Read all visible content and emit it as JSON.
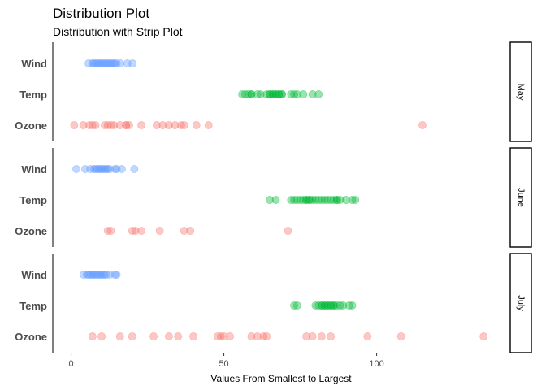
{
  "chart_data": {
    "type": "scatter",
    "title": "Distribution Plot",
    "subtitle": "Distribution with Strip Plot",
    "xlabel": "Values From Smallest to Largest",
    "ylabel": "",
    "xlim": [
      -6,
      140
    ],
    "xticks": [
      0,
      50,
      100
    ],
    "categories": [
      "Wind",
      "Temp",
      "Ozone"
    ],
    "colors": {
      "Wind": "#619cff",
      "Temp": "#00ba38",
      "Ozone": "#f8766d"
    },
    "grid": false,
    "legend": "none",
    "facets": [
      {
        "name": "May",
        "series": [
          {
            "name": "Wind",
            "values": [
              5.7,
              6.9,
              7.4,
              8.0,
              8.6,
              9.2,
              9.7,
              10.3,
              10.9,
              11.5,
              12.0,
              12.6,
              13.2,
              13.8,
              14.3,
              14.9,
              16.1,
              18.4,
              20.1
            ]
          },
          {
            "name": "Temp",
            "values": [
              56,
              57,
              58,
              59,
              59,
              61,
              62,
              64,
              65,
              65,
              66,
              66,
              67,
              67,
              68,
              68,
              69,
              69,
              72,
              73,
              74,
              76,
              79,
              81
            ]
          },
          {
            "name": "Ozone",
            "values": [
              1,
              4,
              6,
              7,
              8,
              11,
              12,
              13,
              14,
              16,
              18,
              18,
              19,
              23,
              28,
              30,
              32,
              34,
              36,
              37,
              41,
              45,
              115
            ]
          }
        ]
      },
      {
        "name": "June",
        "series": [
          {
            "name": "Wind",
            "values": [
              1.7,
              4.6,
              6.3,
              7.4,
              8.0,
              8.6,
              9.2,
              9.7,
              10.3,
              10.9,
              11.5,
              12.0,
              12.6,
              14.3,
              14.9,
              16.6,
              20.7
            ]
          },
          {
            "name": "Temp",
            "values": [
              65,
              67,
              72,
              73,
              74,
              75,
              76,
              77,
              77,
              78,
              78,
              79,
              80,
              81,
              82,
              83,
              84,
              85,
              86,
              87,
              87,
              88,
              90,
              92,
              93
            ]
          },
          {
            "name": "Ozone",
            "values": [
              12,
              13,
              20,
              21,
              23,
              29,
              37,
              39,
              71
            ]
          }
        ]
      },
      {
        "name": "July",
        "series": [
          {
            "name": "Wind",
            "values": [
              4.1,
              5.1,
              5.7,
              6.3,
              6.9,
              7.4,
              8.0,
              8.6,
              9.2,
              9.7,
              10.3,
              10.9,
              11.5,
              12.6,
              14.3,
              14.9
            ]
          },
          {
            "name": "Temp",
            "values": [
              73,
              74,
              80,
              81,
              82,
              82,
              83,
              83,
              84,
              84,
              85,
              85,
              86,
              86,
              87,
              88,
              89,
              91,
              92
            ]
          },
          {
            "name": "Ozone",
            "values": [
              7,
              10,
              16,
              20,
              27,
              32,
              35,
              40,
              48,
              49,
              50,
              52,
              59,
              61,
              63,
              64,
              77,
              79,
              82,
              85,
              97,
              108,
              135
            ]
          }
        ]
      }
    ]
  }
}
